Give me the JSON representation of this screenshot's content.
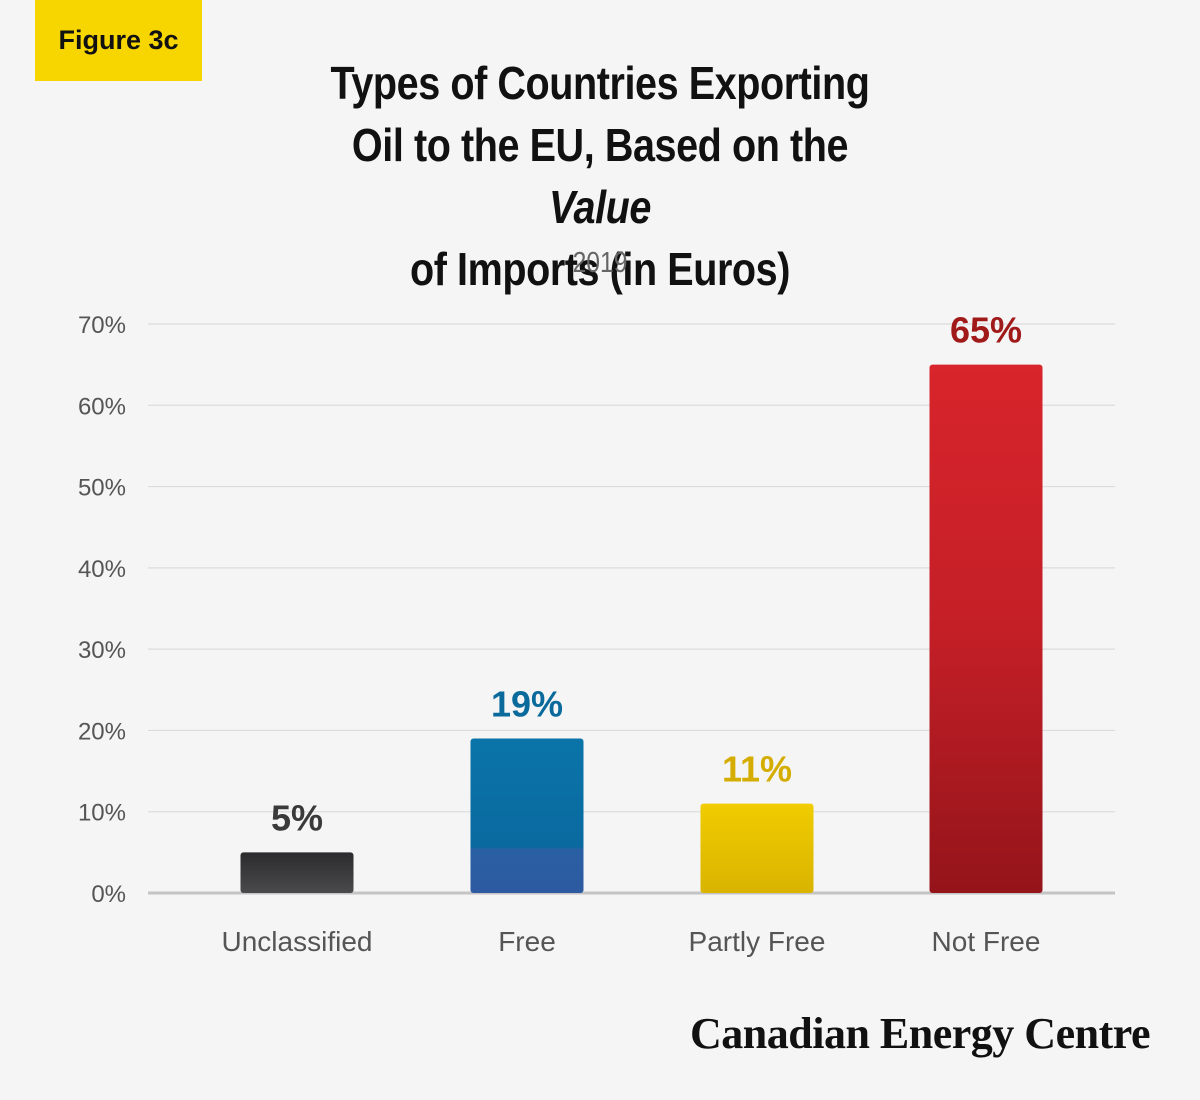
{
  "badge": "Figure 3c",
  "title": {
    "line1": "Types of Countries Exporting",
    "line2_pre": "Oil to the EU, Based on the ",
    "line2_em": "Value",
    "line3": "of Imports (in Euros)"
  },
  "subtitle": "2019",
  "brand": "Canadian Energy Centre",
  "chart_data": {
    "type": "bar",
    "title": "Types of Countries Exporting Oil to the EU, Based on the Value of Imports (in Euros)",
    "subtitle": "2019",
    "categories": [
      "Unclassified",
      "Free",
      "Partly Free",
      "Not Free"
    ],
    "values": [
      5,
      19,
      11,
      65
    ],
    "value_labels": [
      "5%",
      "19%",
      "11%",
      "65%"
    ],
    "colors": [
      "#3a3a3c",
      "#0a6fa3",
      "#e8c500",
      "#c8232a"
    ],
    "label_colors": [
      "#3a3a3a",
      "#0b6a9c",
      "#d4ad00",
      "#a01a1a"
    ],
    "ylim": [
      0,
      70
    ],
    "yticks": [
      0,
      10,
      20,
      30,
      40,
      50,
      60,
      70
    ],
    "ytick_labels": [
      "0%",
      "10%",
      "20%",
      "30%",
      "40%",
      "50%",
      "60%",
      "70%"
    ],
    "xlabel": "",
    "ylabel": "",
    "grid": true
  }
}
